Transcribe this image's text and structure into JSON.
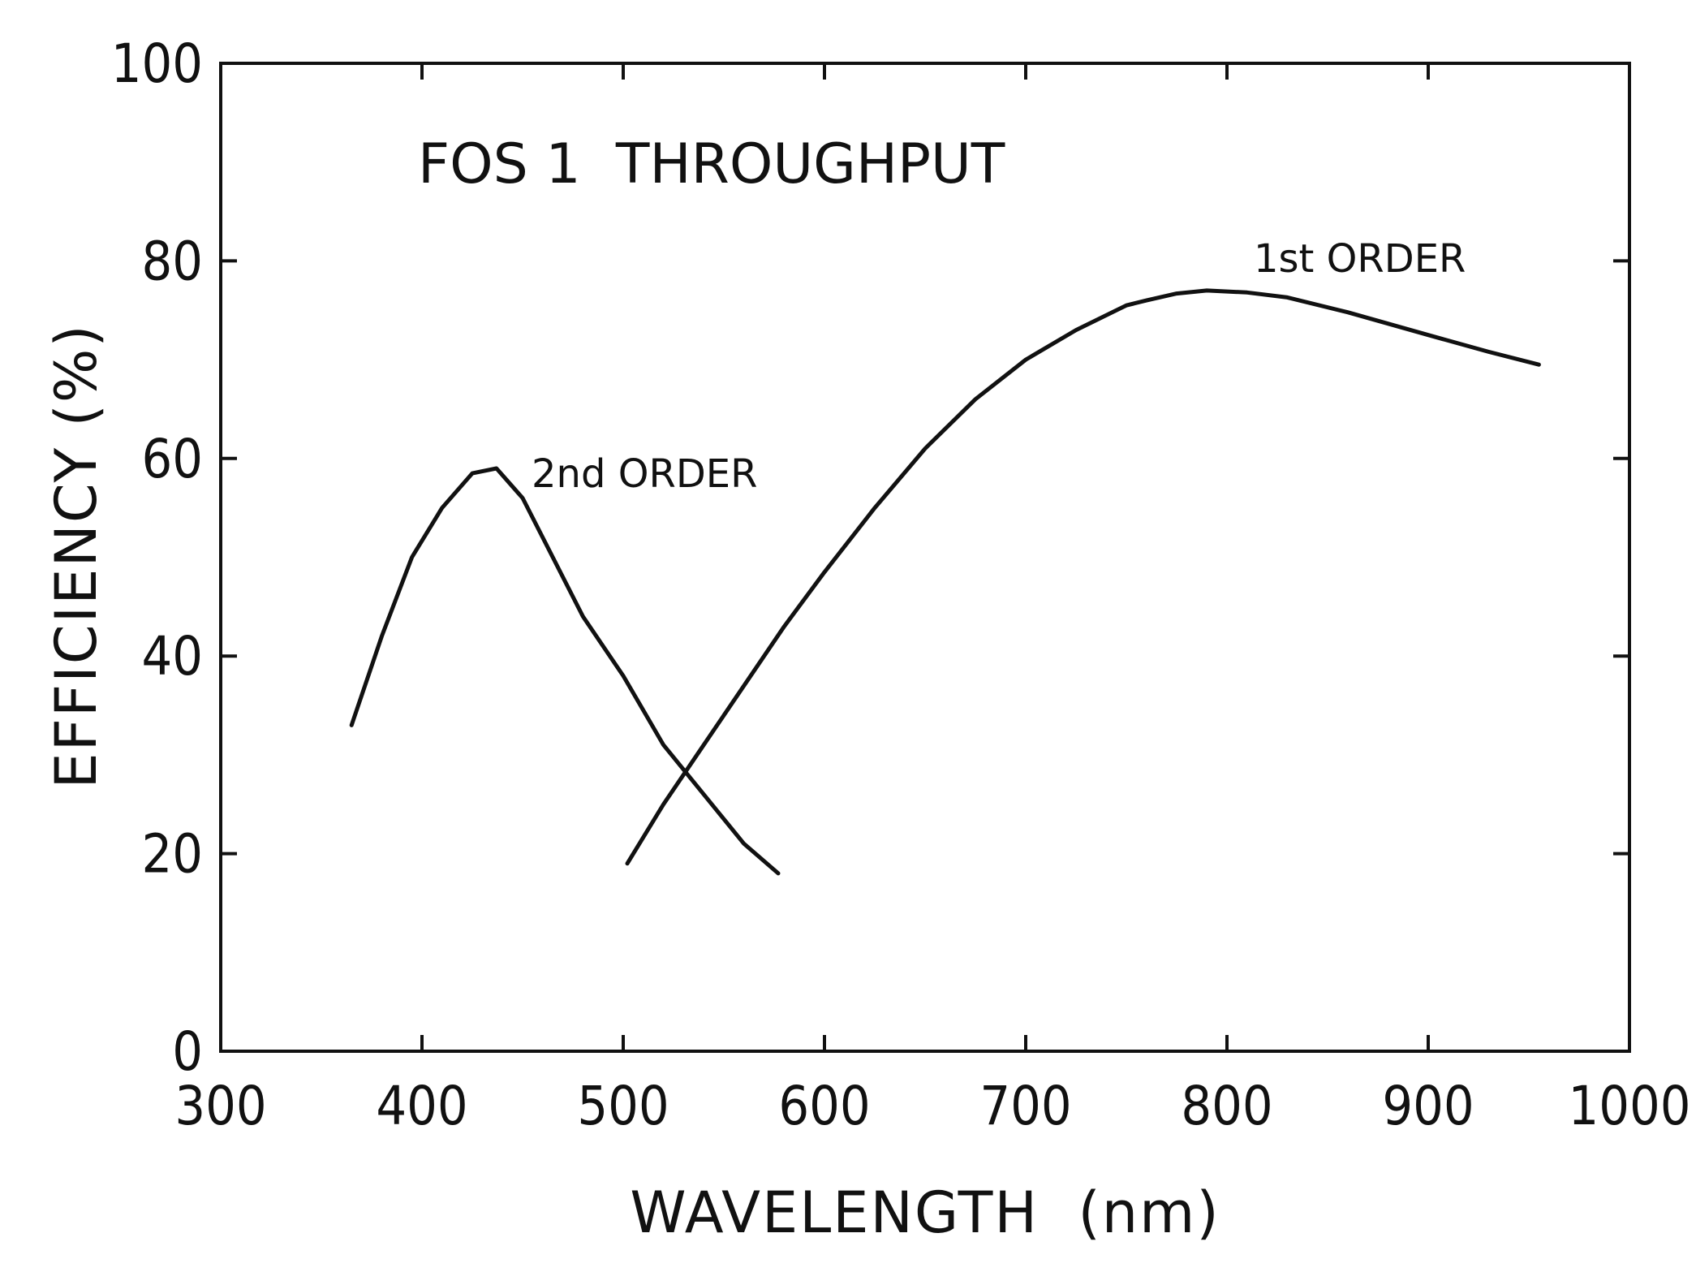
{
  "chart_data": {
    "type": "line",
    "title": "FOS 1  THROUGHPUT",
    "xlabel": "WAVELENGTH  (nm)",
    "ylabel": "EFFICIENCY (%)",
    "xlim": [
      300,
      1000
    ],
    "ylim": [
      0,
      100
    ],
    "xticks": [
      300,
      400,
      500,
      600,
      700,
      800,
      900,
      1000
    ],
    "yticks": [
      0,
      20,
      40,
      60,
      80,
      100
    ],
    "grid": false,
    "series": [
      {
        "name": "2nd ORDER",
        "x": [
          365,
          380,
          395,
          410,
          425,
          437,
          450,
          465,
          480,
          500,
          520,
          540,
          560,
          577
        ],
        "y": [
          33,
          42,
          50,
          55,
          58.5,
          59,
          56,
          50,
          44,
          38,
          31,
          26,
          21,
          18
        ]
      },
      {
        "name": "1st ORDER",
        "x": [
          502,
          520,
          540,
          560,
          580,
          600,
          625,
          650,
          675,
          700,
          725,
          750,
          760,
          775,
          790,
          810,
          830,
          860,
          900,
          930,
          955
        ],
        "y": [
          19,
          25,
          31,
          37,
          43,
          48.5,
          55,
          61,
          66,
          70,
          73,
          75.5,
          76,
          76.7,
          77,
          76.8,
          76.3,
          74.8,
          72.5,
          70.8,
          69.5
        ]
      }
    ]
  }
}
